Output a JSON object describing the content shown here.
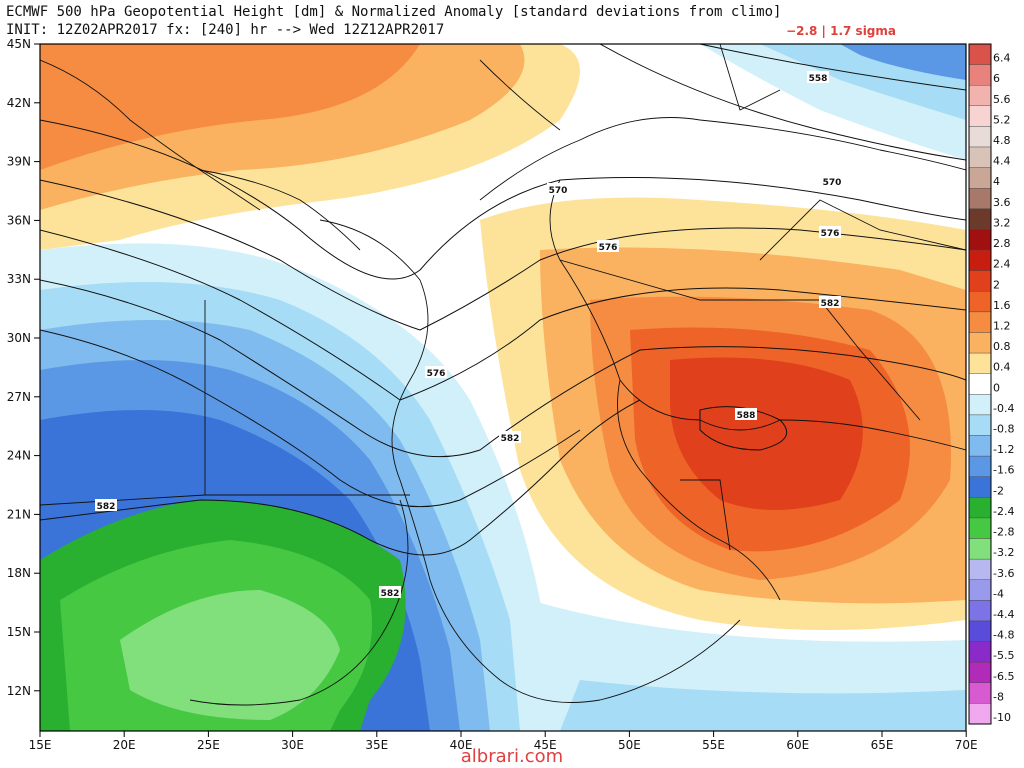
{
  "header": {
    "title_line1": "ECMWF 500 hPa Geopotential Height [dm] & Normalized Anomaly [standard deviations from climo]",
    "title_line2": "INIT: 12Z02APR2017 fx: [240] hr --> Wed 12Z12APR2017",
    "min_max": "−2.8 | 1.7 sigma"
  },
  "axes": {
    "lat_labels": [
      "45N",
      "42N",
      "39N",
      "36N",
      "33N",
      "30N",
      "27N",
      "24N",
      "21N",
      "18N",
      "15N",
      "12N"
    ],
    "lon_labels": [
      "15E",
      "20E",
      "25E",
      "30E",
      "35E",
      "40E",
      "45E",
      "50E",
      "55E",
      "60E",
      "65E",
      "70E"
    ]
  },
  "colorbar": {
    "levels": [
      "6.4",
      "6",
      "5.6",
      "5.2",
      "4.8",
      "4.4",
      "4",
      "3.6",
      "3.2",
      "2.8",
      "2.4",
      "2",
      "1.6",
      "1.2",
      "0.8",
      "0.4",
      "0",
      "-0.4",
      "-0.8",
      "-1.2",
      "-1.6",
      "-2",
      "-2.4",
      "-2.8",
      "-3.2",
      "-3.6",
      "-4",
      "-4.4",
      "-4.8",
      "-5.5",
      "-6.5",
      "-8",
      "-10"
    ],
    "colors": [
      "#d9534a",
      "#e8827c",
      "#f2b2ae",
      "#f7d4d2",
      "#e8dcd6",
      "#d9c2b8",
      "#c9a696",
      "#a8786a",
      "#6b3a2a",
      "#a01010",
      "#c81e10",
      "#e0401c",
      "#ee6428",
      "#f58c42",
      "#fab260",
      "#fde39a",
      "#ffffff",
      "#d2f0fa",
      "#a6dcf5",
      "#7fbbee",
      "#5a98e6",
      "#3a74d9",
      "#2ab030",
      "#46c843",
      "#82e07c",
      "#b8b8f0",
      "#9a9aec",
      "#7c74e6",
      "#5a4cda",
      "#8a2ac8",
      "#b22ab8",
      "#d85ad0",
      "#f0a8ee"
    ]
  },
  "contours": {
    "labels": [
      "558",
      "570",
      "570",
      "576",
      "576",
      "582",
      "576",
      "582",
      "582",
      "582",
      "588"
    ]
  },
  "watermark": "albrari.com"
}
